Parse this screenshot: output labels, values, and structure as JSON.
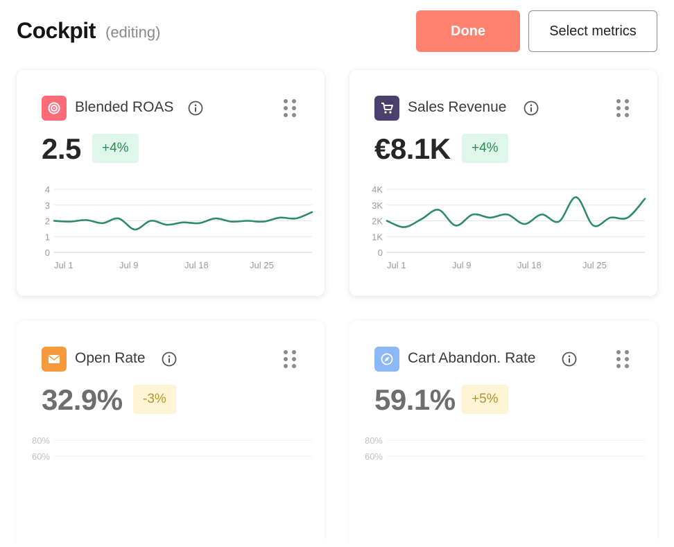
{
  "header": {
    "title": "Cockpit",
    "subtitle": "(editing)",
    "done_label": "Done",
    "select_label": "Select metrics"
  },
  "colors": {
    "accent": "#ff8270",
    "line": "#2e8b6a",
    "roas_icon_bg": "#fd6b79",
    "sales_icon_bg": "#4b3f6e",
    "open_icon_bg": "#f79a3e",
    "cart_icon_bg": "#8cb8f5"
  },
  "cards": [
    {
      "title": "Blended ROAS",
      "icon": "target-icon",
      "value": "2.5",
      "delta": "+4%",
      "chart_data": {
        "type": "line",
        "y_ticks": [
          "4",
          "3",
          "2",
          "1",
          "0"
        ],
        "ylim": [
          0,
          4
        ],
        "x_ticks": [
          "Jul 1",
          "Jul 9",
          "Jul 18",
          "Jul 25"
        ],
        "values": [
          2.0,
          1.95,
          2.05,
          1.85,
          2.15,
          1.45,
          2.0,
          1.75,
          1.9,
          1.85,
          2.15,
          1.95,
          2.0,
          1.95,
          2.2,
          2.15,
          2.55
        ]
      }
    },
    {
      "title": "Sales Revenue",
      "icon": "cart-icon",
      "value": "€8.1K",
      "delta": "+4%",
      "chart_data": {
        "type": "line",
        "y_ticks": [
          "4K",
          "3K",
          "2K",
          "1K",
          "0"
        ],
        "ylim": [
          0,
          4
        ],
        "x_ticks": [
          "Jul 1",
          "Jul 9",
          "Jul 18",
          "Jul 25"
        ],
        "values": [
          2.0,
          1.6,
          2.1,
          2.7,
          1.7,
          2.4,
          2.2,
          2.4,
          1.8,
          2.4,
          1.95,
          3.5,
          1.7,
          2.2,
          2.2,
          3.4
        ]
      }
    },
    {
      "title": "Open Rate",
      "icon": "mail-icon",
      "value": "32.9%",
      "delta": "-3%",
      "chart_data": {
        "type": "line",
        "y_ticks": [
          "80%",
          "60%"
        ],
        "x_ticks": [],
        "values": []
      }
    },
    {
      "title": "Cart Abandon. Rate",
      "icon": "compass-icon",
      "value": "59.1%",
      "delta": "+5%",
      "chart_data": {
        "type": "line",
        "y_ticks": [
          "80%",
          "60%"
        ],
        "x_ticks": [],
        "values": []
      }
    }
  ]
}
